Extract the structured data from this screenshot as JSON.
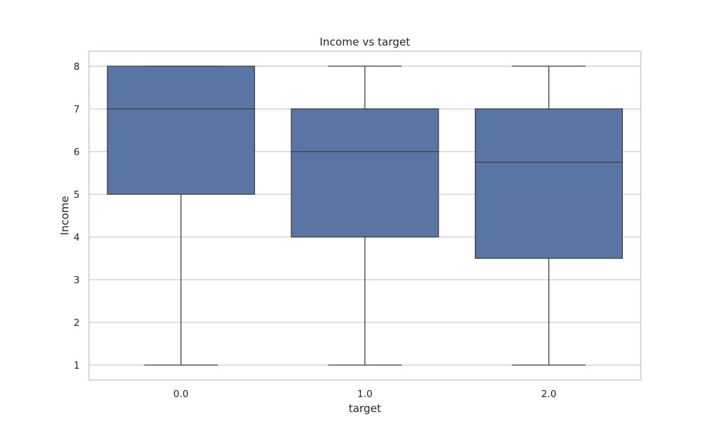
{
  "chart_data": {
    "type": "box",
    "title": "Income vs target",
    "xlabel": "target",
    "ylabel": "Income",
    "categories": [
      "0.0",
      "1.0",
      "2.0"
    ],
    "boxes": [
      {
        "category": "0.0",
        "whisker_low": 1,
        "q1": 5,
        "median": 7,
        "q3": 8,
        "whisker_high": 8
      },
      {
        "category": "1.0",
        "whisker_low": 1,
        "q1": 4,
        "median": 6,
        "q3": 7,
        "whisker_high": 8
      },
      {
        "category": "2.0",
        "whisker_low": 1,
        "q1": 3.5,
        "median": 5.75,
        "q3": 7,
        "whisker_high": 8
      }
    ],
    "yticks": [
      1,
      2,
      3,
      4,
      5,
      6,
      7,
      8
    ],
    "ylim": [
      0.65,
      8.35
    ],
    "grid": true,
    "box_color": "#5875a4",
    "line_color": "#3f3f3f",
    "grid_color": "#cccccc",
    "frame_color": "#cccccc"
  }
}
